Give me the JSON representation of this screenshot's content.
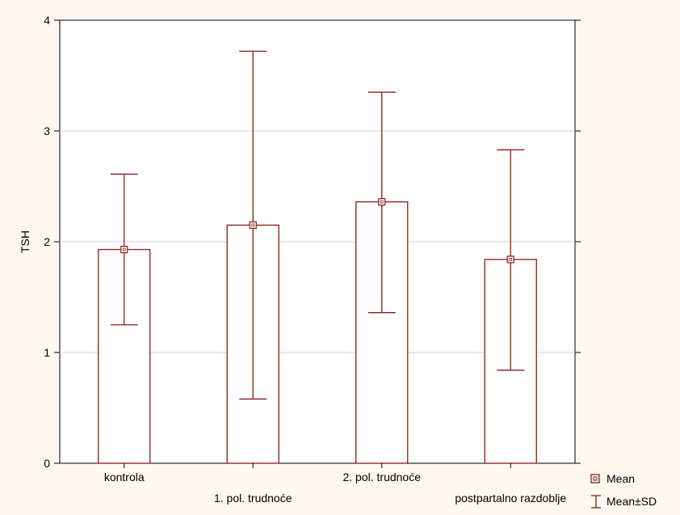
{
  "chart_data": {
    "type": "bar",
    "ylabel": "TSH",
    "xlabel": "",
    "ylim": [
      0,
      4
    ],
    "yticks": [
      0,
      1,
      2,
      3,
      4
    ],
    "grid": true,
    "legend_position": "bottom-right",
    "colors": {
      "series": "#8b1a1a",
      "background": "#fdf8ee",
      "plot": "#ffffff",
      "grid": "#d0d0d0"
    },
    "categories": [
      "kontrola",
      "1. pol. trudnoće",
      "2. pol. trudnoće",
      "postpartalno razdoblje"
    ],
    "series": [
      {
        "name": "Mean",
        "values": [
          1.93,
          2.15,
          2.36,
          1.84
        ]
      },
      {
        "name": "Mean±SD",
        "lower": [
          1.25,
          0.58,
          1.36,
          0.84
        ],
        "upper": [
          2.61,
          3.72,
          3.35,
          2.83
        ]
      }
    ]
  }
}
